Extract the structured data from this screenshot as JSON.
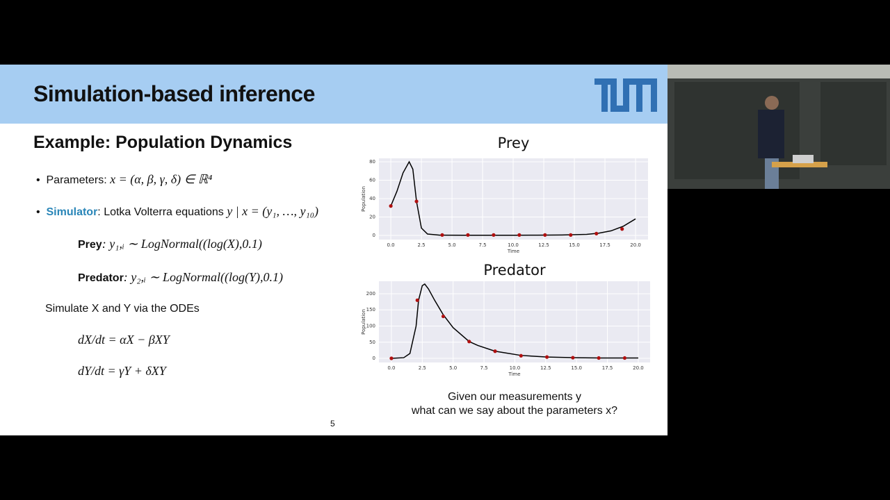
{
  "slide": {
    "title": "Simulation-based inference",
    "subtitle": "Example: Population Dynamics",
    "parameters_label": "Parameters:",
    "parameters_math": "x = (α, β, γ, δ) ∈ ℝ⁴",
    "simulator_label": "Simulator",
    "simulator_text": ": Lotka Volterra equations",
    "simulator_math": "y | x = (y₁, …, y₁₀)",
    "prey_label": "Prey",
    "prey_math": ": y₁,ᵢ ∼ LogNormal((log(X),0.1)",
    "predator_label": "Predator",
    "predator_math": ": y₂,ᵢ ∼ LogNormal((log(Y),0.1)",
    "simulate_text": "Simulate X and Y via the ODEs",
    "ode_x": "dX/dt = αX − βXY",
    "ode_y": "dY/dt = γY + δXY",
    "question_line1": "Given our measurements y",
    "question_line2": "what can we say about the parameters x?",
    "page_number": "5"
  },
  "chart_data": [
    {
      "type": "line",
      "title": "Prey",
      "x_label": "Time",
      "y_label": "Population",
      "xlim": [
        -0.97,
        21.02
      ],
      "ylim": [
        -4.5,
        83.8
      ],
      "xticks": [
        {
          "value": 0,
          "label": "0.0"
        },
        {
          "value": 2.5,
          "label": "2.5"
        },
        {
          "value": 5,
          "label": "5.0"
        },
        {
          "value": 7.5,
          "label": "7.5"
        },
        {
          "value": 10,
          "label": "10.0"
        },
        {
          "value": 12.5,
          "label": "12.5"
        },
        {
          "value": 15,
          "label": "15.0"
        },
        {
          "value": 17.5,
          "label": "17.5"
        },
        {
          "value": 20,
          "label": "20.0"
        }
      ],
      "yticks": [
        0,
        20,
        40,
        60,
        80
      ],
      "grid": true,
      "series": [
        {
          "type": "line",
          "color": "#000000",
          "x": [
            0,
            0.5,
            1,
            1.5,
            1.8,
            2.1,
            2.5,
            3,
            4,
            6,
            8,
            10,
            12,
            14,
            16,
            17,
            18,
            19,
            20
          ],
          "values": [
            32,
            48,
            68,
            80,
            72,
            37,
            8,
            1.5,
            0.3,
            0.2,
            0.2,
            0.2,
            0.3,
            0.5,
            1.2,
            2.5,
            5,
            10,
            18
          ]
        },
        {
          "type": "scatter",
          "color": "#b01010",
          "x": [
            0,
            2.1,
            4.2,
            6.3,
            8.4,
            10.5,
            12.6,
            14.7,
            16.8,
            18.9
          ],
          "values": [
            32,
            37,
            0.5,
            0.5,
            0.5,
            0.5,
            0.5,
            0.5,
            2,
            7
          ]
        }
      ]
    },
    {
      "type": "line",
      "title": "Predator",
      "x_label": "Time",
      "y_label": "Population",
      "xlim": [
        -1.01,
        20.96
      ],
      "ylim": [
        -12.9,
        238.7
      ],
      "xticks": [
        {
          "value": 0,
          "label": "0.0"
        },
        {
          "value": 2.5,
          "label": "2.5"
        },
        {
          "value": 5,
          "label": "5.0"
        },
        {
          "value": 7.5,
          "label": "7.5"
        },
        {
          "value": 10,
          "label": "10.0"
        },
        {
          "value": 12.5,
          "label": "12.5"
        },
        {
          "value": 15,
          "label": "15.0"
        },
        {
          "value": 17.5,
          "label": "17.5"
        },
        {
          "value": 20,
          "label": "20.0"
        }
      ],
      "yticks": [
        0,
        50,
        100,
        150,
        200
      ],
      "grid": true,
      "series": [
        {
          "type": "line",
          "color": "#000000",
          "x": [
            0,
            1,
            1.5,
            2,
            2.2,
            2.5,
            2.7,
            3,
            3.5,
            4.2,
            5,
            6.3,
            7,
            8.4,
            10.5,
            12.6,
            15,
            17,
            20
          ],
          "values": [
            0,
            2,
            15,
            100,
            180,
            225,
            230,
            215,
            180,
            135,
            95,
            52,
            40,
            22,
            9,
            4,
            2,
            1,
            1
          ]
        },
        {
          "type": "scatter",
          "color": "#b01010",
          "x": [
            0,
            2.1,
            4.2,
            6.3,
            8.4,
            10.5,
            12.6,
            14.7,
            16.8,
            18.9
          ],
          "values": [
            0,
            180,
            130,
            52,
            22,
            8,
            4,
            2,
            1,
            1
          ]
        }
      ]
    }
  ]
}
